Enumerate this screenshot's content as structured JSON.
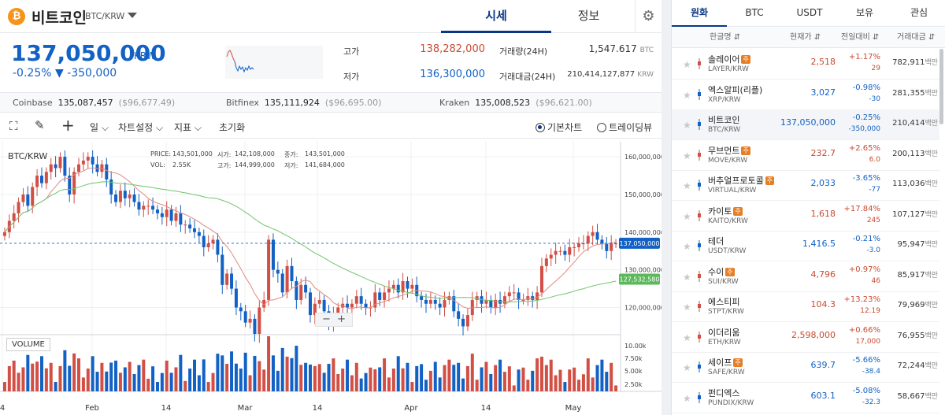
{
  "header": {
    "coin_symbol": "₿",
    "coin_name": "비트코인",
    "pair": "BTC/KRW",
    "tab_quote": "시세",
    "tab_info": "정보",
    "settings_icon": "gear-icon"
  },
  "price": {
    "value": "137,050,000",
    "unit": "KRW",
    "change": "-0.25% ▼ -350,000"
  },
  "stats": {
    "high_label": "고가",
    "high": "138,282,000",
    "low_label": "저가",
    "low": "136,300,000",
    "volume_label": "거래량(24H)",
    "volume": "1,547.617",
    "volume_unit": "BTC",
    "amount_label": "거래대금(24H)",
    "amount": "210,414,127,877",
    "amount_unit": "KRW"
  },
  "exchanges": [
    {
      "name": "Coinbase",
      "price": "135,087,457",
      "usd": "($96,677.49)"
    },
    {
      "name": "Bitfinex",
      "price": "135,111,924",
      "usd": "($96,695.00)"
    },
    {
      "name": "Kraken",
      "price": "135,008,523",
      "usd": "($96,621.00)"
    }
  ],
  "toolbar": {
    "period": "일",
    "chart_settings": "차트설정",
    "indicators": "지표",
    "reset": "초기화",
    "basic_chart": "기본차트",
    "tradingview": "트레이딩뷰"
  },
  "chart": {
    "title": "BTC/KRW",
    "ohlc": {
      "price_label": "PRICE:",
      "price": "143,501,000",
      "vol_label": "VOL:",
      "vol": "2.55K",
      "open_label": "시가:",
      "open": "142,108,000",
      "high_label": "고가:",
      "high": "144,999,000",
      "close_label": "종가:",
      "close": "143,501,000",
      "low_label": "저가:",
      "low": "141,684,000"
    },
    "volume_label": "VOLUME",
    "current_tag": "137,050,000",
    "ma_tag": "127,532,580",
    "colors": {
      "up": "#d24f45",
      "down": "#1261c4",
      "ma_short": "#e08a80",
      "ma_long": "#6fc66a"
    }
  },
  "chart_data": {
    "type": "candlestick",
    "title": "BTC/KRW",
    "x_ticks": [
      "4",
      "Feb",
      "14",
      "Mar",
      "14",
      "Apr",
      "14",
      "May"
    ],
    "y_ticks": [
      "160,000,000",
      "150,000,000",
      "140,000,000",
      "130,000,000",
      "120,000,000"
    ],
    "volume_ticks": [
      "10.00k",
      "7.50k",
      "5.00k",
      "2.50k"
    ],
    "ylim": [
      113000000,
      164000000
    ],
    "current_price": 137050000,
    "ma_long_last": 127532580,
    "closes": [
      140,
      143,
      145,
      148,
      150,
      147,
      152,
      155,
      153,
      156,
      158,
      157,
      160,
      155,
      150,
      156,
      158,
      159,
      160,
      158,
      156,
      158,
      154,
      150,
      148,
      151,
      149,
      150,
      148,
      146,
      147,
      147,
      146,
      145,
      144,
      146,
      143,
      145,
      142,
      142,
      141,
      140,
      139,
      136,
      137,
      138,
      134,
      126,
      129,
      125,
      120,
      119,
      116,
      117,
      113,
      120,
      122,
      138,
      130,
      129,
      124,
      131,
      127,
      122,
      126,
      124,
      118,
      121,
      122,
      119,
      116,
      118,
      120,
      121,
      120,
      121,
      123,
      121,
      120,
      120,
      124,
      122,
      124,
      125,
      126,
      124,
      127,
      125,
      126,
      123,
      122,
      121,
      122,
      121,
      120,
      122,
      123,
      119,
      117,
      115,
      118,
      122,
      123,
      121,
      122,
      120,
      122,
      121,
      123,
      124,
      124,
      122,
      122,
      123,
      122,
      124,
      131,
      133,
      134,
      135,
      135,
      134,
      136,
      136,
      137,
      137,
      139,
      140,
      138,
      137,
      135,
      137,
      137
    ]
  },
  "market": {
    "tabs": [
      "원화",
      "BTC",
      "USDT",
      "보유",
      "관심"
    ],
    "col_name": "한글명 ⇵",
    "col_price": "현재가 ⇵",
    "col_change": "전일대비 ⇵",
    "col_amount": "거래대금 ⇵",
    "amount_unit": "백만",
    "rows": [
      {
        "name": "솔레이어",
        "badge": "주",
        "pair": "LAYER/KRW",
        "price": "2,518",
        "rate": "+1.17%",
        "delta": "29",
        "amount": "782,911",
        "dir": "up"
      },
      {
        "name": "엑스알피(리플)",
        "badge": "",
        "pair": "XRP/KRW",
        "price": "3,027",
        "rate": "-0.98%",
        "delta": "-30",
        "amount": "281,355",
        "dir": "down"
      },
      {
        "name": "비트코인",
        "badge": "",
        "pair": "BTC/KRW",
        "price": "137,050,000",
        "rate": "-0.25%",
        "delta": "-350,000",
        "amount": "210,414",
        "dir": "down"
      },
      {
        "name": "무브먼트",
        "badge": "주",
        "pair": "MOVE/KRW",
        "price": "232.7",
        "rate": "+2.65%",
        "delta": "6.0",
        "amount": "200,113",
        "dir": "up"
      },
      {
        "name": "버추얼프로토콜",
        "badge": "주",
        "pair": "VIRTUAL/KRW",
        "price": "2,033",
        "rate": "-3.65%",
        "delta": "-77",
        "amount": "113,036",
        "dir": "down"
      },
      {
        "name": "카이토",
        "badge": "주",
        "pair": "KAITO/KRW",
        "price": "1,618",
        "rate": "+17.84%",
        "delta": "245",
        "amount": "107,127",
        "dir": "up"
      },
      {
        "name": "테더",
        "badge": "",
        "pair": "USDT/KRW",
        "price": "1,416.5",
        "rate": "-0.21%",
        "delta": "-3.0",
        "amount": "95,947",
        "dir": "down"
      },
      {
        "name": "수이",
        "badge": "주",
        "pair": "SUI/KRW",
        "price": "4,796",
        "rate": "+0.97%",
        "delta": "46",
        "amount": "85,917",
        "dir": "up"
      },
      {
        "name": "에스티피",
        "badge": "",
        "pair": "STPT/KRW",
        "price": "104.3",
        "rate": "+13.23%",
        "delta": "12.19",
        "amount": "79,969",
        "dir": "up"
      },
      {
        "name": "이더리움",
        "badge": "",
        "pair": "ETH/KRW",
        "price": "2,598,000",
        "rate": "+0.66%",
        "delta": "17,000",
        "amount": "76,955",
        "dir": "up"
      },
      {
        "name": "세이프",
        "badge": "주",
        "pair": "SAFE/KRW",
        "price": "639.7",
        "rate": "-5.66%",
        "delta": "-38.4",
        "amount": "72,244",
        "dir": "down"
      },
      {
        "name": "펀디엑스",
        "badge": "",
        "pair": "PUNDIX/KRW",
        "price": "603.1",
        "rate": "-5.08%",
        "delta": "-32.3",
        "amount": "58,667",
        "dir": "down"
      }
    ]
  }
}
